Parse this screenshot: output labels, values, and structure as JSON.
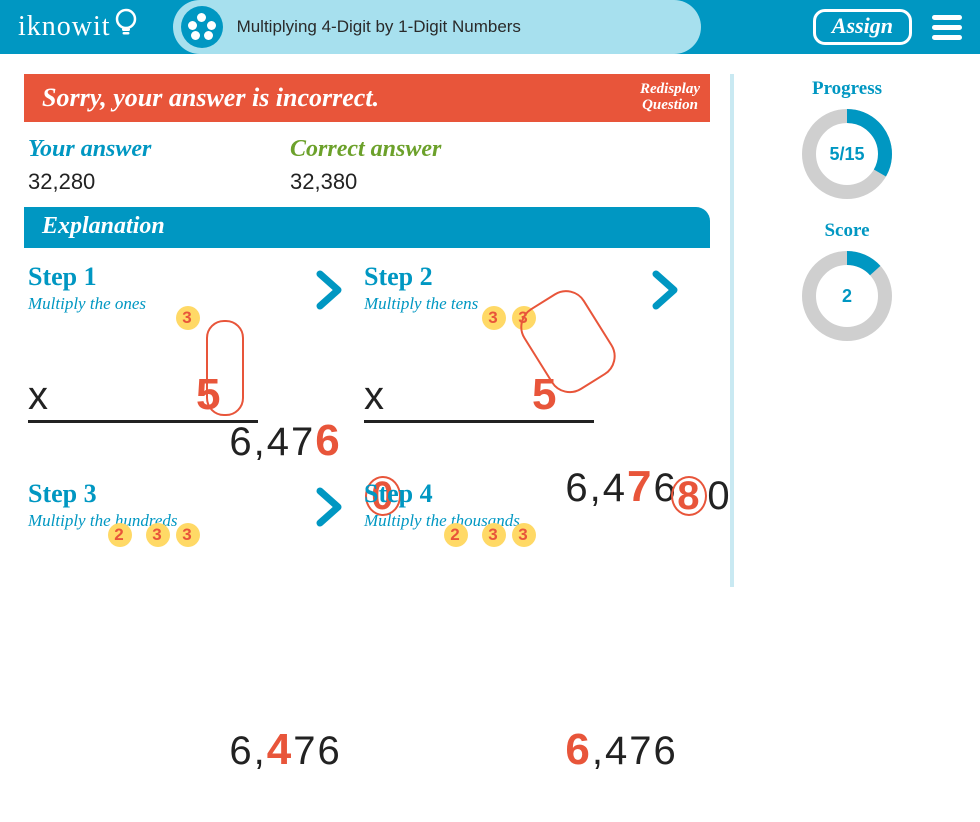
{
  "brand": "iknowit",
  "lesson_title": "Multiplying 4-Digit by 1-Digit Numbers",
  "assign_label": "Assign",
  "alert": {
    "message": "Sorry, your answer is incorrect.",
    "redisplay_line1": "Redisplay",
    "redisplay_line2": "Question"
  },
  "answers": {
    "your_label": "Your answer",
    "your_value": "32,280",
    "correct_label": "Correct answer",
    "correct_value": "32,380"
  },
  "explanation_label": "Explanation",
  "steps": {
    "s1": {
      "title": "Step 1",
      "sub": "Multiply the ones"
    },
    "s2": {
      "title": "Step 2",
      "sub": "Multiply the tens"
    },
    "s3": {
      "title": "Step 3",
      "sub": "Multiply the hundreds"
    },
    "s4": {
      "title": "Step 4",
      "sub": "Multiply the thousands"
    }
  },
  "math": {
    "top_digits": "6,476",
    "multiplier": "5",
    "step1": {
      "carry_pos3": "3",
      "result_digit": "0"
    },
    "step2": {
      "carry_pos2": "3",
      "carry_pos3": "3",
      "result_digits": "80",
      "hl_result_index": 0
    },
    "step3": {
      "carry_pos1": "2",
      "carry_pos2": "3",
      "carry_pos3": "3"
    },
    "step4": {
      "carry_pos1": "2",
      "carry_pos2": "3",
      "carry_pos3": "3"
    }
  },
  "progress": {
    "label": "Progress",
    "text": "5/15",
    "fraction": 0.333
  },
  "score": {
    "label": "Score",
    "text": "2",
    "fraction": 0.133
  },
  "colors": {
    "brand": "#0097c2",
    "alert": "#e8553a",
    "correct": "#6ca12b",
    "ring_bg": "#cfcfcf",
    "carry_bg": "#ffd966"
  }
}
